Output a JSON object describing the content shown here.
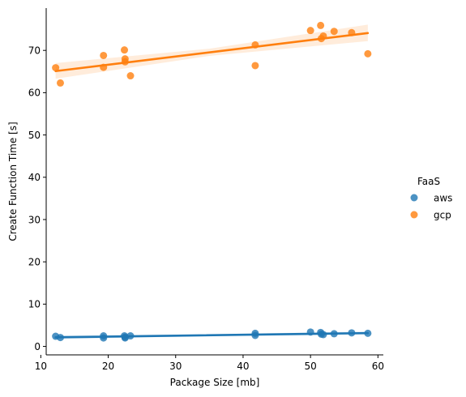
{
  "chart_data": {
    "type": "scatter",
    "title": "",
    "xlabel": "Package Size [mb]",
    "ylabel": "Create Function Time [s]",
    "xlim": [
      10.8,
      60.8
    ],
    "ylim": [
      -2,
      80
    ],
    "xticks": [
      10,
      20,
      30,
      40,
      50,
      60
    ],
    "yticks": [
      0,
      10,
      20,
      30,
      40,
      50,
      60,
      70
    ],
    "grid": false,
    "legend": {
      "title": "FaaS",
      "placement": "center-right"
    },
    "series": [
      {
        "name": "aws",
        "color": "#1f77b4",
        "points": [
          [
            12.2,
            2.4
          ],
          [
            12.9,
            2.1
          ],
          [
            19.3,
            2.0
          ],
          [
            19.3,
            2.5
          ],
          [
            22.4,
            2.5
          ],
          [
            22.5,
            2.0
          ],
          [
            22.5,
            2.2
          ],
          [
            23.3,
            2.5
          ],
          [
            41.8,
            2.6
          ],
          [
            41.8,
            3.1
          ],
          [
            50.0,
            3.4
          ],
          [
            51.5,
            3.3
          ],
          [
            51.6,
            2.9
          ],
          [
            51.9,
            2.8
          ],
          [
            53.5,
            3.0
          ],
          [
            56.1,
            3.2
          ],
          [
            58.5,
            3.1
          ]
        ],
        "fit": {
          "x": [
            12.2,
            58.5
          ],
          "y": [
            2.15,
            3.15
          ]
        },
        "ci": {
          "x": [
            12.2,
            35.0,
            58.5
          ],
          "lower": [
            1.7,
            2.45,
            2.75
          ],
          "upper": [
            2.6,
            2.85,
            3.55
          ]
        }
      },
      {
        "name": "gcp",
        "color": "#ff7f0e",
        "points": [
          [
            12.2,
            65.9
          ],
          [
            12.9,
            62.3
          ],
          [
            19.3,
            68.8
          ],
          [
            19.3,
            66.0
          ],
          [
            22.4,
            70.1
          ],
          [
            22.5,
            68.0
          ],
          [
            22.5,
            67.3
          ],
          [
            23.3,
            64.0
          ],
          [
            41.8,
            71.3
          ],
          [
            41.8,
            66.4
          ],
          [
            50.0,
            74.7
          ],
          [
            51.5,
            75.9
          ],
          [
            51.6,
            72.8
          ],
          [
            51.9,
            73.4
          ],
          [
            53.5,
            74.5
          ],
          [
            56.1,
            74.2
          ],
          [
            58.5,
            69.2
          ]
        ],
        "fit": {
          "x": [
            12.2,
            58.5
          ],
          "y": [
            65.1,
            74.1
          ]
        },
        "ci": {
          "x": [
            12.2,
            35.0,
            58.5
          ],
          "lower": [
            63.3,
            68.7,
            72.2
          ],
          "upper": [
            67.0,
            70.4,
            76.1
          ]
        }
      }
    ]
  }
}
